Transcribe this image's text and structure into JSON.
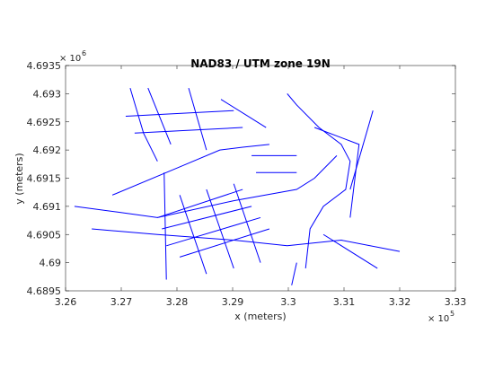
{
  "chart_data": {
    "type": "line",
    "title": "NAD83 / UTM zone 19N",
    "x_label": "x (meters)",
    "y_label": "y (meters)",
    "x_exponent": {
      "base": "× 10",
      "power": 5
    },
    "y_exponent": {
      "base": "× 10",
      "power": 6
    },
    "color": "#0000ff",
    "xlim": [
      3.26,
      3.33
    ],
    "xticks": [
      3.26,
      3.27,
      3.28,
      3.29,
      3.3,
      3.31,
      3.32,
      3.33
    ],
    "ylim": [
      4.6895,
      4.6935
    ],
    "yticks": [
      4.6895,
      4.69,
      4.6905,
      4.691,
      4.6915,
      4.692,
      4.6925,
      4.693,
      4.6935
    ],
    "lines": [
      {
        "x": [
          3.2616,
          3.2692,
          3.2765,
          3.2902,
          3.3015,
          3.3047,
          3.3087
        ],
        "y": [
          4.691,
          4.6909,
          4.6908,
          4.6911,
          4.6913,
          4.6915,
          4.6919
        ]
      },
      {
        "x": [
          3.2647,
          3.2765,
          3.2902,
          3.2998,
          3.3095,
          3.32
        ],
        "y": [
          4.6906,
          4.6905,
          4.6904,
          4.6903,
          4.6904,
          4.6902
        ]
      },
      {
        "x": [
          3.2684,
          3.2805,
          3.2877,
          3.2918,
          3.2966
        ],
        "y": [
          4.6912,
          4.6917,
          4.692,
          4.69205,
          4.6921
        ]
      },
      {
        "x": [
          3.3031,
          3.3039,
          3.3063,
          3.3103,
          3.3111,
          3.3095,
          3.3055,
          3.3015,
          3.2998
        ],
        "y": [
          4.6899,
          4.6906,
          4.691,
          4.6913,
          4.6918,
          4.6921,
          4.6924,
          4.6928,
          4.693
        ]
      },
      {
        "x": [
          3.2777,
          3.2781
        ],
        "y": [
          4.6916,
          4.6897
        ]
      },
      {
        "x": [
          3.2765,
          3.2918
        ],
        "y": [
          4.6908,
          4.6913
        ]
      },
      {
        "x": [
          3.2773,
          3.2934
        ],
        "y": [
          4.6906,
          4.691
        ]
      },
      {
        "x": [
          3.2781,
          3.295
        ],
        "y": [
          4.6903,
          4.6908
        ]
      },
      {
        "x": [
          3.2805,
          3.2966
        ],
        "y": [
          4.6901,
          4.6906
        ]
      },
      {
        "x": [
          3.2805,
          3.2853
        ],
        "y": [
          4.6912,
          4.6898
        ]
      },
      {
        "x": [
          3.2853,
          3.2902
        ],
        "y": [
          4.6913,
          4.6899
        ]
      },
      {
        "x": [
          3.2902,
          3.295
        ],
        "y": [
          4.6914,
          4.69
        ]
      },
      {
        "x": [
          3.2716,
          3.274,
          3.2765
        ],
        "y": [
          4.6931,
          4.6923,
          4.6918
        ]
      },
      {
        "x": [
          3.2748,
          3.2789
        ],
        "y": [
          4.6931,
          4.6921
        ]
      },
      {
        "x": [
          3.2821,
          3.2853
        ],
        "y": [
          4.6931,
          4.692
        ]
      },
      {
        "x": [
          3.2708,
          3.2902
        ],
        "y": [
          4.6926,
          4.6927
        ]
      },
      {
        "x": [
          3.2724,
          3.2918
        ],
        "y": [
          4.6923,
          4.6924
        ]
      },
      {
        "x": [
          3.2879,
          3.296
        ],
        "y": [
          4.6929,
          4.6924
        ]
      },
      {
        "x": [
          3.2934,
          3.3015
        ],
        "y": [
          4.6919,
          4.6919
        ]
      },
      {
        "x": [
          3.2942,
          3.3015
        ],
        "y": [
          4.6916,
          4.6916
        ]
      },
      {
        "x": [
          3.3047,
          3.3127,
          3.3111
        ],
        "y": [
          4.6924,
          4.6921,
          4.6908
        ]
      },
      {
        "x": [
          3.3111,
          3.3152
        ],
        "y": [
          4.6913,
          4.6927
        ]
      },
      {
        "x": [
          3.3015,
          3.3006
        ],
        "y": [
          4.69,
          4.6896
        ]
      },
      {
        "x": [
          3.3063,
          3.316
        ],
        "y": [
          4.6905,
          4.6899
        ]
      }
    ]
  }
}
